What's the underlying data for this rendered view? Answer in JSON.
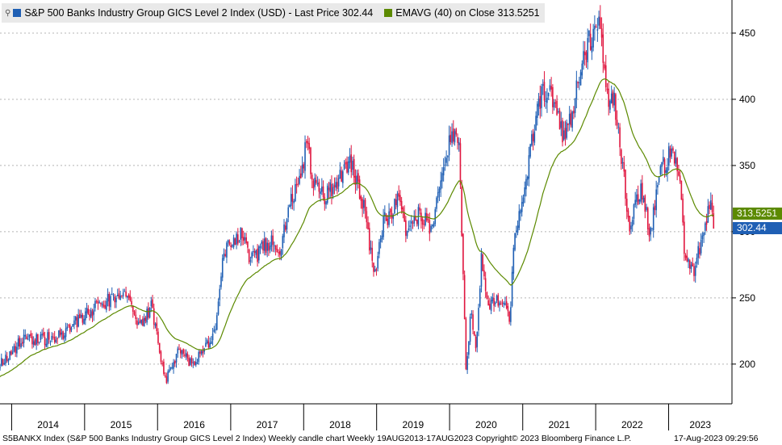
{
  "legend": {
    "pin_icon": "pin-icon",
    "series1_text": "S&P 500 Banks Industry Group GICS Level 2 Index (USD) - Last Price 302.44",
    "series1_color": "#1f5fb4",
    "series2_text": "EMAVG (40)  on Close 313.5251",
    "series2_color": "#5c8a00"
  },
  "price_tags": {
    "ema": "313.5251",
    "last": "302.44",
    "ema_color": "#5c8a00",
    "last_color": "#1f5fb4"
  },
  "footer": {
    "left": "S5BANKX Index (S&P 500 Banks Industry Group GICS Level 2 Index) Weekly candle chart  Weekly 19AUG2013-17AUG2023  Copyright© 2023 Bloomberg Finance L.P.",
    "right": "17-Aug-2023 09:29:56"
  },
  "chart_data": {
    "type": "line",
    "chart_style": "weekly candlestick",
    "x_range": [
      "2013-08-19",
      "2023-08-17"
    ],
    "x_ticks": [
      "2014",
      "2015",
      "2016",
      "2017",
      "2018",
      "2019",
      "2020",
      "2021",
      "2022",
      "2023"
    ],
    "y_ticks": [
      200,
      250,
      300,
      350,
      400,
      450
    ],
    "ylim": [
      170,
      475
    ],
    "y_axis_side": "right",
    "grid": "horizontal dotted",
    "up_color": "#1f5fb4",
    "down_color": "#e0163f",
    "ema_color": "#5c8a00",
    "close_anchors": [
      {
        "x": "2013-08-19",
        "y": 192
      },
      {
        "x": "2013-12-01",
        "y": 203
      },
      {
        "x": "2014-03-01",
        "y": 220
      },
      {
        "x": "2014-06-01",
        "y": 218
      },
      {
        "x": "2014-09-01",
        "y": 222
      },
      {
        "x": "2014-12-20",
        "y": 236
      },
      {
        "x": "2015-03-15",
        "y": 245
      },
      {
        "x": "2015-07-20",
        "y": 255
      },
      {
        "x": "2015-09-25",
        "y": 228
      },
      {
        "x": "2015-12-01",
        "y": 243
      },
      {
        "x": "2016-02-11",
        "y": 187
      },
      {
        "x": "2016-04-20",
        "y": 214
      },
      {
        "x": "2016-06-27",
        "y": 198
      },
      {
        "x": "2016-10-15",
        "y": 225
      },
      {
        "x": "2016-11-15",
        "y": 272
      },
      {
        "x": "2016-12-20",
        "y": 292
      },
      {
        "x": "2017-03-01",
        "y": 297
      },
      {
        "x": "2017-04-15",
        "y": 278
      },
      {
        "x": "2017-07-15",
        "y": 293
      },
      {
        "x": "2017-09-01",
        "y": 282
      },
      {
        "x": "2017-10-15",
        "y": 315
      },
      {
        "x": "2017-12-15",
        "y": 345
      },
      {
        "x": "2018-01-25",
        "y": 370
      },
      {
        "x": "2018-02-09",
        "y": 340
      },
      {
        "x": "2018-04-01",
        "y": 327
      },
      {
        "x": "2018-06-15",
        "y": 333
      },
      {
        "x": "2018-08-15",
        "y": 355
      },
      {
        "x": "2018-10-20",
        "y": 326
      },
      {
        "x": "2018-12-24",
        "y": 266
      },
      {
        "x": "2019-02-01",
        "y": 305
      },
      {
        "x": "2019-04-15",
        "y": 325
      },
      {
        "x": "2019-06-01",
        "y": 300
      },
      {
        "x": "2019-08-01",
        "y": 315
      },
      {
        "x": "2019-10-01",
        "y": 302
      },
      {
        "x": "2019-12-15",
        "y": 355
      },
      {
        "x": "2020-01-15",
        "y": 378
      },
      {
        "x": "2020-02-20",
        "y": 360
      },
      {
        "x": "2020-03-23",
        "y": 195
      },
      {
        "x": "2020-04-15",
        "y": 238
      },
      {
        "x": "2020-05-15",
        "y": 213
      },
      {
        "x": "2020-06-08",
        "y": 278
      },
      {
        "x": "2020-07-15",
        "y": 245
      },
      {
        "x": "2020-09-15",
        "y": 248
      },
      {
        "x": "2020-10-30",
        "y": 232
      },
      {
        "x": "2020-11-15",
        "y": 293
      },
      {
        "x": "2021-01-15",
        "y": 335
      },
      {
        "x": "2021-03-15",
        "y": 395
      },
      {
        "x": "2021-05-15",
        "y": 412
      },
      {
        "x": "2021-07-20",
        "y": 372
      },
      {
        "x": "2021-09-01",
        "y": 388
      },
      {
        "x": "2021-11-01",
        "y": 432
      },
      {
        "x": "2022-01-14",
        "y": 462
      },
      {
        "x": "2022-03-08",
        "y": 392
      },
      {
        "x": "2022-04-01",
        "y": 405
      },
      {
        "x": "2022-05-20",
        "y": 343
      },
      {
        "x": "2022-06-17",
        "y": 303
      },
      {
        "x": "2022-08-15",
        "y": 335
      },
      {
        "x": "2022-10-01",
        "y": 298
      },
      {
        "x": "2022-11-15",
        "y": 345
      },
      {
        "x": "2023-01-15",
        "y": 360
      },
      {
        "x": "2023-03-01",
        "y": 345
      },
      {
        "x": "2023-03-20",
        "y": 280
      },
      {
        "x": "2023-05-04",
        "y": 268
      },
      {
        "x": "2023-06-15",
        "y": 293
      },
      {
        "x": "2023-07-27",
        "y": 325
      },
      {
        "x": "2023-08-17",
        "y": 302.44
      }
    ],
    "last_price": 302.44,
    "ema_last": 313.5251
  }
}
